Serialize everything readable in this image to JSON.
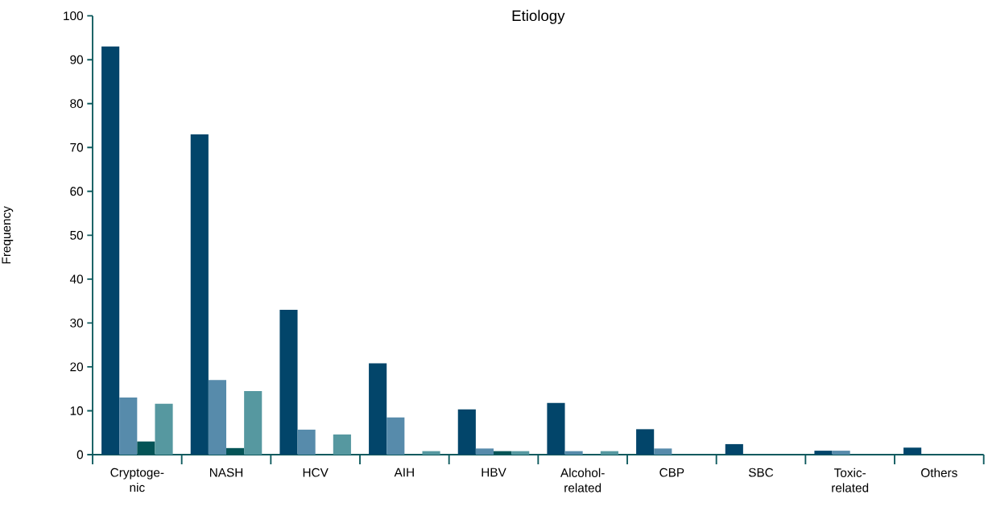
{
  "chart_data": {
    "type": "bar",
    "title": "Etiology",
    "ylabel": "Frequency",
    "categories": [
      "Cryptoge-nic",
      "NASH",
      "HCV",
      "AIH",
      "HBV",
      "Alcohol-related",
      "CBP",
      "SBC",
      "Toxic-related",
      "Others"
    ],
    "series": [
      {
        "color": "#02456a",
        "values": [
          93,
          73,
          33,
          20.8,
          10.3,
          11.8,
          5.8,
          2.4,
          0.9,
          1.6
        ]
      },
      {
        "color": "#578bab",
        "values": [
          13,
          17,
          5.7,
          8.5,
          1.4,
          0.8,
          1.4,
          0,
          0.9,
          0
        ]
      },
      {
        "color": "#045457",
        "values": [
          3,
          1.5,
          0,
          0,
          0.8,
          0,
          0,
          0,
          0,
          0
        ]
      },
      {
        "color": "#5698a0",
        "values": [
          11.6,
          14.5,
          4.6,
          0.8,
          0.8,
          0.8,
          0,
          0,
          0,
          0
        ]
      }
    ],
    "ylim": [
      0,
      100
    ],
    "yticks": [
      0,
      10,
      20,
      30,
      40,
      50,
      60,
      70,
      80,
      90,
      100
    ],
    "grid": false
  }
}
